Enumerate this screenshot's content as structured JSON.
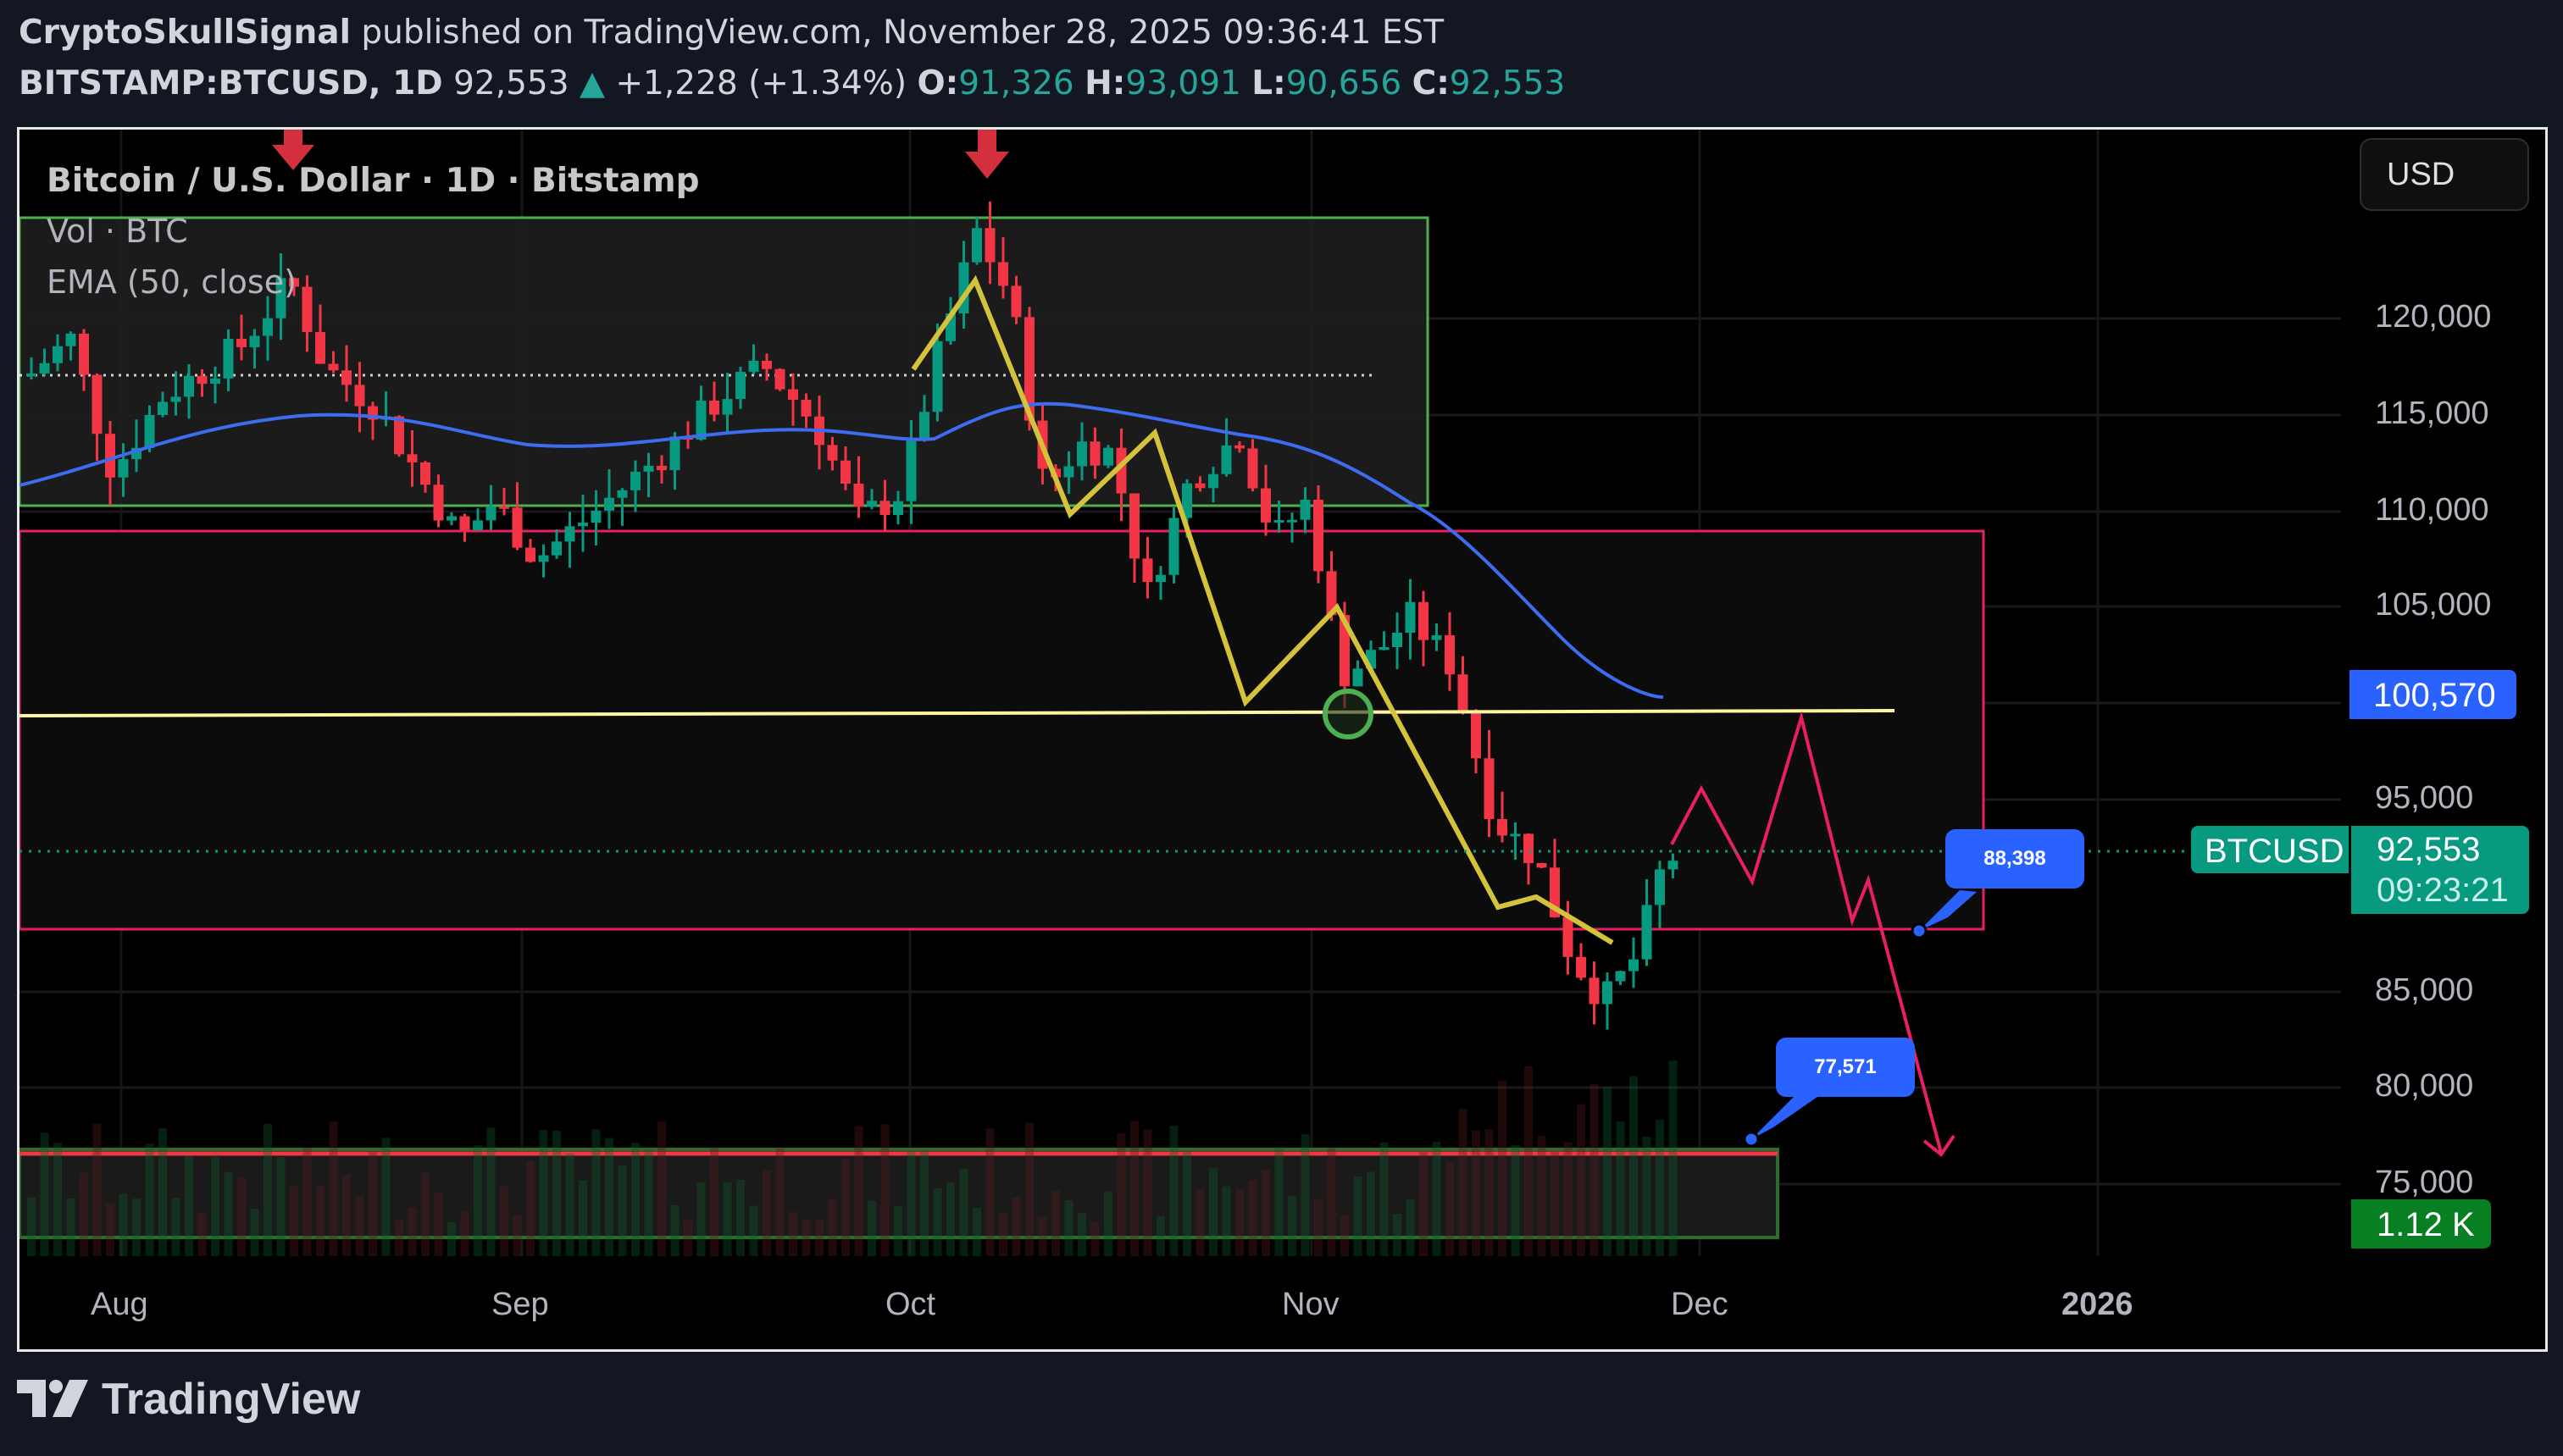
{
  "header": {
    "author": "CryptoSkullSignal",
    "published_text": "published on TradingView.com, November 28, 2025 09:36:41 EST",
    "symbol": "BITSTAMP:BTCUSD, 1D",
    "last": "92,553",
    "change": "+1,228 (+1.34%)",
    "o_label": "O:",
    "o": "91,326",
    "h_label": "H:",
    "h": "93,091",
    "l_label": "L:",
    "l": "90,656",
    "c_label": "C:",
    "c": "92,553"
  },
  "legend": {
    "title": "Bitcoin / U.S. Dollar · 1D · Bitstamp",
    "volume": "Vol · BTC",
    "ema": "EMA (50, close)"
  },
  "currency_button": "USD",
  "y_axis": {
    "labels": [
      "120,000",
      "115,000",
      "110,000",
      "105,000",
      "95,000",
      "85,000",
      "80,000",
      "75,000"
    ]
  },
  "price_tags": {
    "ema_value": "100,570",
    "symbol_tag": "BTCUSD",
    "last_price": "92,553",
    "countdown": "09:23:21",
    "volume": "1.12 K"
  },
  "callouts": {
    "upper": "88,398",
    "lower": "77,571"
  },
  "x_axis": {
    "labels": [
      "Aug",
      "Sep",
      "Oct",
      "Nov",
      "Dec",
      "2026"
    ]
  },
  "footer": {
    "brand": "TradingView"
  },
  "colors": {
    "up": "#089981",
    "down": "#f23645",
    "ema": "#2962ff",
    "zigzag": "#d4c33a",
    "projection": "#e91e63",
    "support": "#fff59d",
    "box_green": "#4caf50"
  },
  "chart_data": {
    "type": "candlestick",
    "title": "Bitcoin / U.S. Dollar · 1D · Bitstamp",
    "symbol": "BITSTAMP:BTCUSD",
    "interval": "1D",
    "ylabel": "USD",
    "ylim": [
      73000,
      127000
    ],
    "x_ticks": [
      "Aug",
      "Sep",
      "Oct",
      "Nov",
      "Dec",
      "2026"
    ],
    "y_ticks": [
      75000,
      80000,
      85000,
      95000,
      105000,
      110000,
      115000,
      120000
    ],
    "last_ohlc": {
      "open": 91326,
      "high": 93091,
      "low": 90656,
      "close": 92553,
      "change": 1228,
      "change_pct": 1.34
    },
    "ema50_last": 100570,
    "approx_closes_by_period": [
      {
        "period": "early Aug",
        "price": 117000
      },
      {
        "period": "mid Aug",
        "price": 121000
      },
      {
        "period": "late Aug",
        "price": 109000
      },
      {
        "period": "mid Sep",
        "price": 116000
      },
      {
        "period": "late Sep",
        "price": 109500
      },
      {
        "period": "Oct 6 peak",
        "price": 125000
      },
      {
        "period": "Oct 10 drop",
        "price": 112000
      },
      {
        "period": "late Oct",
        "price": 114000
      },
      {
        "period": "Nov 4",
        "price": 101000
      },
      {
        "period": "Nov 11",
        "price": 105000
      },
      {
        "period": "Nov 21 low",
        "price": 80600
      },
      {
        "period": "Nov 28",
        "price": 92553
      }
    ],
    "annotations": [
      {
        "type": "rect",
        "label": "range box (green)",
        "top": 121000,
        "bottom": 110500
      },
      {
        "type": "rect",
        "label": "range box (pink)",
        "top": 109000,
        "bottom": 88400
      },
      {
        "type": "hline",
        "label": "support (yellow)",
        "price": 100000
      },
      {
        "type": "callout",
        "price": 88398
      },
      {
        "type": "callout",
        "price": 77571
      },
      {
        "type": "projection",
        "label": "bearish path",
        "target": 76500
      },
      {
        "type": "arrow_down",
        "label": "sell signals",
        "count": 2
      }
    ]
  }
}
